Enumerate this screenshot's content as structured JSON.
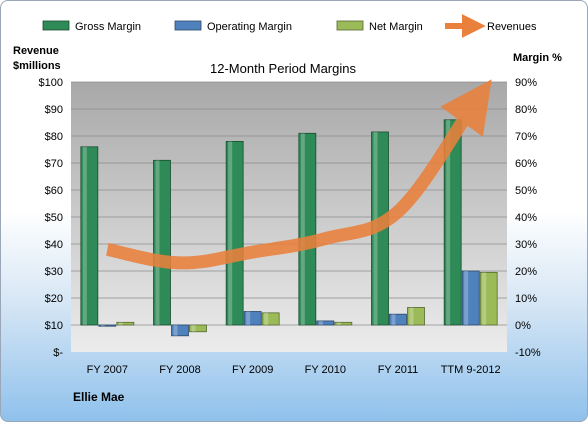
{
  "chart_data": {
    "type": "bar",
    "title": "12-Month Period Margins",
    "company": "Ellie Mae",
    "categories": [
      "FY 2007",
      "FY 2008",
      "FY 2009",
      "FY 2010",
      "FY 2011",
      "TTM 9-2012"
    ],
    "left_axis": {
      "label_line1": "Revenue",
      "label_line2": "$millions",
      "min": 0,
      "max": 100,
      "step": 10,
      "tick_labels": [
        "$-",
        "$10",
        "$20",
        "$30",
        "$40",
        "$50",
        "$60",
        "$70",
        "$80",
        "$90",
        "$100"
      ]
    },
    "right_axis": {
      "label": "Margin %",
      "min": -10,
      "max": 90,
      "step": 10,
      "tick_labels": [
        "-10%",
        "0%",
        "10%",
        "20%",
        "30%",
        "40%",
        "50%",
        "60%",
        "70%",
        "80%",
        "90%"
      ]
    },
    "legend_position": "top",
    "series": [
      {
        "name": "Gross Margin",
        "kind": "bar",
        "axis": "right",
        "color": "#2e8b57",
        "values": [
          66,
          61,
          68,
          71,
          71.5,
          76
        ]
      },
      {
        "name": "Operating Margin",
        "kind": "bar",
        "axis": "right",
        "color": "#4f81bd",
        "values": [
          0,
          -4,
          5,
          1.5,
          4,
          20
        ]
      },
      {
        "name": "Net Margin",
        "kind": "bar",
        "axis": "right",
        "color": "#9bbb59",
        "values": [
          1,
          -2.5,
          4.5,
          1,
          6.5,
          19.5
        ]
      },
      {
        "name": "Revenues",
        "kind": "line",
        "axis": "left",
        "color": "#e9803c",
        "values": [
          38,
          33,
          37,
          42,
          52,
          90
        ]
      }
    ]
  }
}
